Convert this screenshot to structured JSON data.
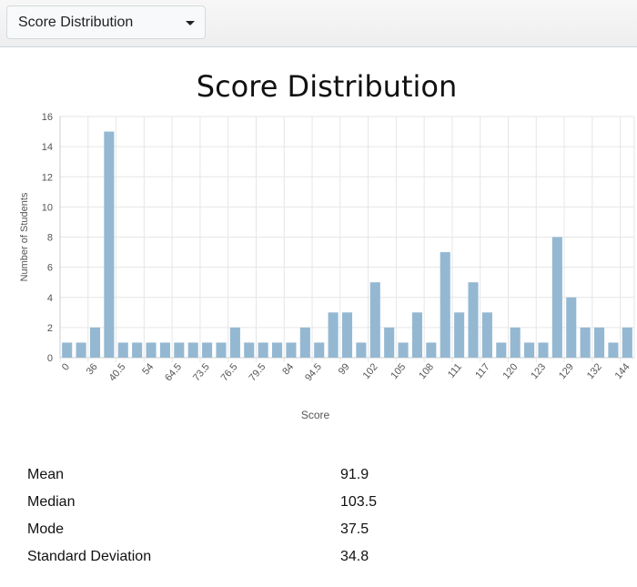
{
  "dropdown": {
    "selected": "Score Distribution"
  },
  "colors": {
    "bar": "#94b8d2",
    "grid": "#e6e6e6",
    "axis": "#cccccc",
    "tick_text": "#555555"
  },
  "chart_data": {
    "type": "bar",
    "title": "Score Distribution",
    "xlabel": "Score",
    "ylabel": "Number of Students",
    "ylim": [
      0,
      16
    ],
    "yticks": [
      0,
      2,
      4,
      6,
      8,
      10,
      12,
      14,
      16
    ],
    "grid": true,
    "x_tick_labels": [
      "0",
      "36",
      "40.5",
      "54",
      "64.5",
      "73.5",
      "76.5",
      "79.5",
      "84",
      "94.5",
      "99",
      "102",
      "105",
      "108",
      "111",
      "117",
      "120",
      "123",
      "129",
      "132",
      "144"
    ],
    "values": [
      1,
      1,
      2,
      15,
      1,
      1,
      1,
      1,
      1,
      1,
      1,
      1,
      2,
      1,
      1,
      1,
      1,
      2,
      1,
      3,
      3,
      1,
      5,
      2,
      1,
      3,
      1,
      7,
      3,
      5,
      3,
      1,
      2,
      1,
      1,
      8,
      4,
      2,
      2,
      1,
      2
    ]
  },
  "stats": [
    {
      "label": "Mean",
      "value": "91.9"
    },
    {
      "label": "Median",
      "value": "103.5"
    },
    {
      "label": "Mode",
      "value": "37.5"
    },
    {
      "label": "Standard Deviation",
      "value": "34.8"
    }
  ]
}
